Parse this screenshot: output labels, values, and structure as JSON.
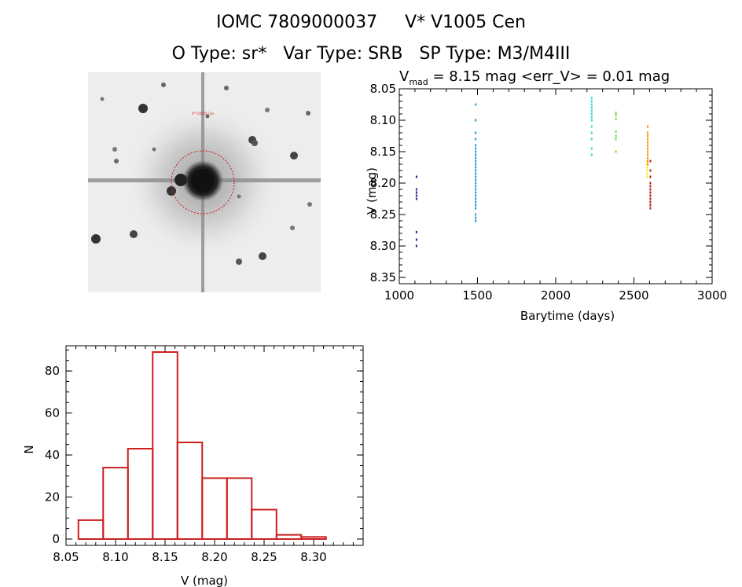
{
  "header": {
    "title_line1": "IOMC 7809000037     V* V1005 Cen",
    "title_line2": "O Type: sr*   Var Type: SRB   SP Type: M3/M4III"
  },
  "sky_image": {
    "label": "V* V1005 Cen"
  },
  "chart_data": [
    {
      "type": "scatter",
      "title_parts": {
        "v": "V",
        "sub": "mad",
        "rest": " = 8.15 mag <err_V> = 0.01 mag"
      },
      "xlabel": "Barytime (days)",
      "ylabel": "V (mag)",
      "xlim": [
        1000,
        3000
      ],
      "ylim": [
        8.36,
        8.05
      ],
      "y_reversed": true,
      "xticks": [
        1000,
        1500,
        2000,
        2500,
        3000
      ],
      "yticks": [
        8.05,
        8.1,
        8.15,
        8.2,
        8.25,
        8.3,
        8.35
      ],
      "grid": false,
      "series": [
        {
          "color": "#2b1f8f",
          "x": [
            1110,
            1110,
            1110,
            1110,
            1110,
            1110,
            1110,
            1110
          ],
          "y": [
            8.19,
            8.21,
            8.215,
            8.22,
            8.225,
            8.278,
            8.29,
            8.3
          ]
        },
        {
          "color": "#1f9ad6",
          "x": [
            1488,
            1488,
            1488,
            1488,
            1488,
            1488,
            1488,
            1488,
            1488,
            1488,
            1488,
            1488,
            1488,
            1488,
            1488,
            1488,
            1488,
            1488,
            1488,
            1488,
            1488,
            1488,
            1488,
            1488,
            1488,
            1488,
            1488,
            1488
          ],
          "y": [
            8.075,
            8.1,
            8.12,
            8.13,
            8.14,
            8.145,
            8.15,
            8.155,
            8.16,
            8.165,
            8.17,
            8.175,
            8.18,
            8.185,
            8.19,
            8.195,
            8.2,
            8.205,
            8.21,
            8.215,
            8.22,
            8.225,
            8.23,
            8.235,
            8.24,
            8.25,
            8.255,
            8.26
          ]
        },
        {
          "color": "#27e0d0",
          "x": [
            2230,
            2230,
            2230,
            2230,
            2230,
            2230,
            2230,
            2230,
            2230,
            2230,
            2230,
            2230,
            2230
          ],
          "y": [
            8.065,
            8.07,
            8.075,
            8.08,
            8.085,
            8.09,
            8.095,
            8.1,
            8.11,
            8.12,
            8.13,
            8.145,
            8.155
          ]
        },
        {
          "color": "#6fe030",
          "x": [
            2385,
            2385,
            2385,
            2385,
            2385,
            2385,
            2385
          ],
          "y": [
            8.088,
            8.092,
            8.098,
            8.118,
            8.125,
            8.13,
            8.15
          ]
        },
        {
          "color": "#f6e81a",
          "x": [
            2585,
            2585,
            2585,
            2585,
            2585,
            2585
          ],
          "y": [
            8.165,
            8.17,
            8.175,
            8.18,
            8.185,
            8.19
          ]
        },
        {
          "color": "#ff8c00",
          "x": [
            2588,
            2588,
            2588,
            2588,
            2588,
            2588,
            2588,
            2588,
            2588,
            2588,
            2588,
            2588
          ],
          "y": [
            8.11,
            8.12,
            8.125,
            8.13,
            8.135,
            8.14,
            8.145,
            8.15,
            8.155,
            8.16,
            8.165,
            8.17
          ]
        },
        {
          "color": "#b01818",
          "x": [
            2605,
            2605,
            2605,
            2605,
            2605,
            2605,
            2605,
            2605,
            2605,
            2605,
            2605,
            2605
          ],
          "y": [
            8.165,
            8.18,
            8.19,
            8.2,
            8.205,
            8.21,
            8.215,
            8.22,
            8.225,
            8.23,
            8.235,
            8.24
          ]
        }
      ]
    },
    {
      "type": "bar",
      "xlabel": "V (mag)",
      "ylabel": "N",
      "xlim": [
        8.05,
        8.35
      ],
      "ylim": [
        -3,
        92
      ],
      "xticks": [
        8.05,
        8.1,
        8.15,
        8.2,
        8.25,
        8.3
      ],
      "yticks": [
        0,
        20,
        40,
        60,
        80
      ],
      "bar_color": "#cc2020",
      "bin_edges": [
        8.0625,
        8.0875,
        8.1125,
        8.1375,
        8.1625,
        8.1875,
        8.2125,
        8.2375,
        8.2625,
        8.2875,
        8.3125
      ],
      "values": [
        9,
        34,
        43,
        89,
        46,
        29,
        29,
        14,
        2,
        1
      ]
    }
  ]
}
